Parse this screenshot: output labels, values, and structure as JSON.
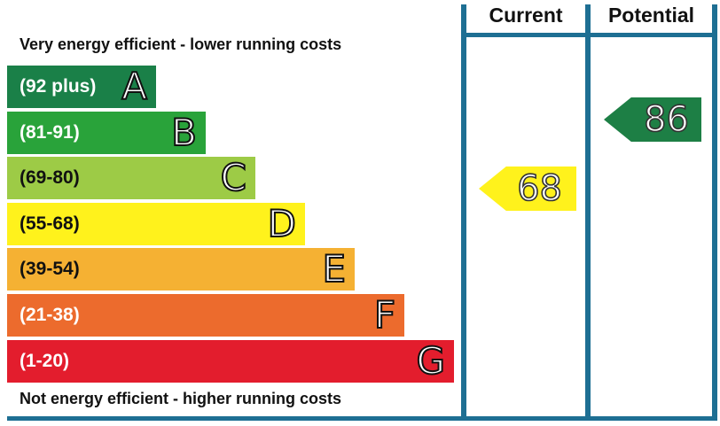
{
  "captions": {
    "top": "Very energy efficient - lower running costs",
    "bottom": "Not energy efficient - higher running costs"
  },
  "columns": {
    "current": "Current",
    "potential": "Potential"
  },
  "chart_data": {
    "type": "bar",
    "bands": [
      {
        "letter": "A",
        "range": "(92 plus)",
        "min": 92,
        "max": 100,
        "color": "#1a8048"
      },
      {
        "letter": "B",
        "range": "(81-91)",
        "min": 81,
        "max": 91,
        "color": "#29a33a"
      },
      {
        "letter": "C",
        "range": "(69-80)",
        "min": 69,
        "max": 80,
        "color": "#9dcb46"
      },
      {
        "letter": "D",
        "range": "(55-68)",
        "min": 55,
        "max": 68,
        "color": "#fff21c"
      },
      {
        "letter": "E",
        "range": "(39-54)",
        "min": 39,
        "max": 54,
        "color": "#f5b133"
      },
      {
        "letter": "F",
        "range": "(21-38)",
        "min": 21,
        "max": 38,
        "color": "#ec6b2d"
      },
      {
        "letter": "G",
        "range": "(1-20)",
        "min": 1,
        "max": 20,
        "color": "#e31d2d"
      }
    ],
    "current": {
      "value": 68,
      "band": "D",
      "color": "#fff21c"
    },
    "potential": {
      "value": 86,
      "band": "B",
      "color": "#1d7f45"
    }
  }
}
